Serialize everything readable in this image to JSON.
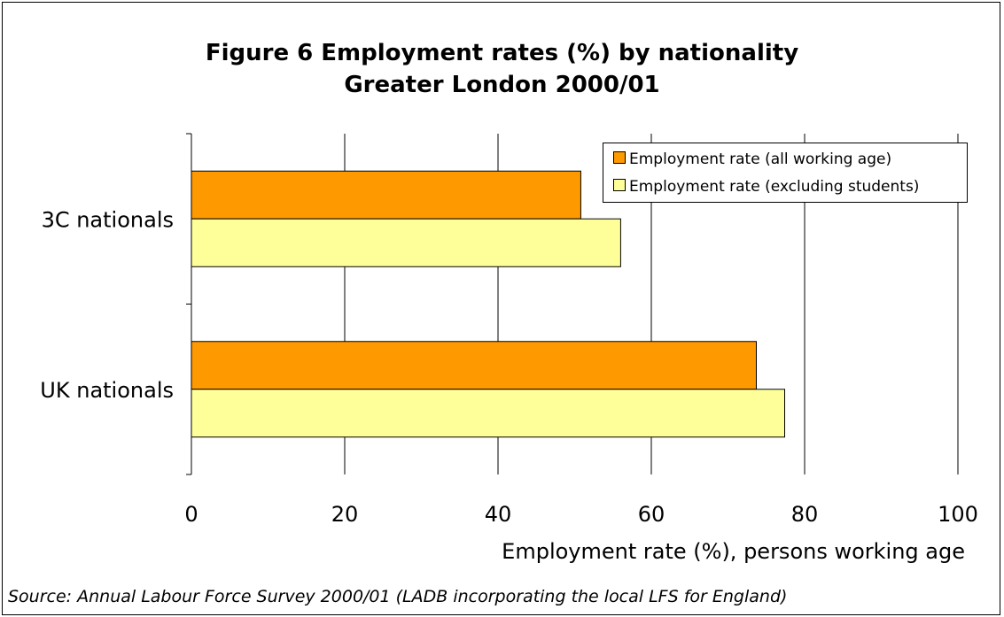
{
  "title_line1": "Figure 6 Employment rates (%) by nationality",
  "title_line2": "Greater London 2000/01",
  "source": "Source: Annual Labour Force Survey 2000/01 (LADB incorporating the local LFS for England)",
  "chart_data": {
    "type": "bar",
    "orientation": "horizontal",
    "categories": [
      "3C nationals",
      "UK nationals"
    ],
    "series": [
      {
        "name": "Employment rate (all working age)",
        "values": [
          50.8,
          73.7
        ],
        "color": "#ff9900"
      },
      {
        "name": "Employment rate (excluding students)",
        "values": [
          56.0,
          77.4
        ],
        "color": "#ffff99"
      }
    ],
    "xlabel": "Employment rate (%), persons working age",
    "xlim": [
      0,
      100
    ],
    "xticks": [
      "0",
      "20",
      "40",
      "60",
      "80",
      "100"
    ],
    "grid": "vertical",
    "legend_position": "top-right"
  }
}
